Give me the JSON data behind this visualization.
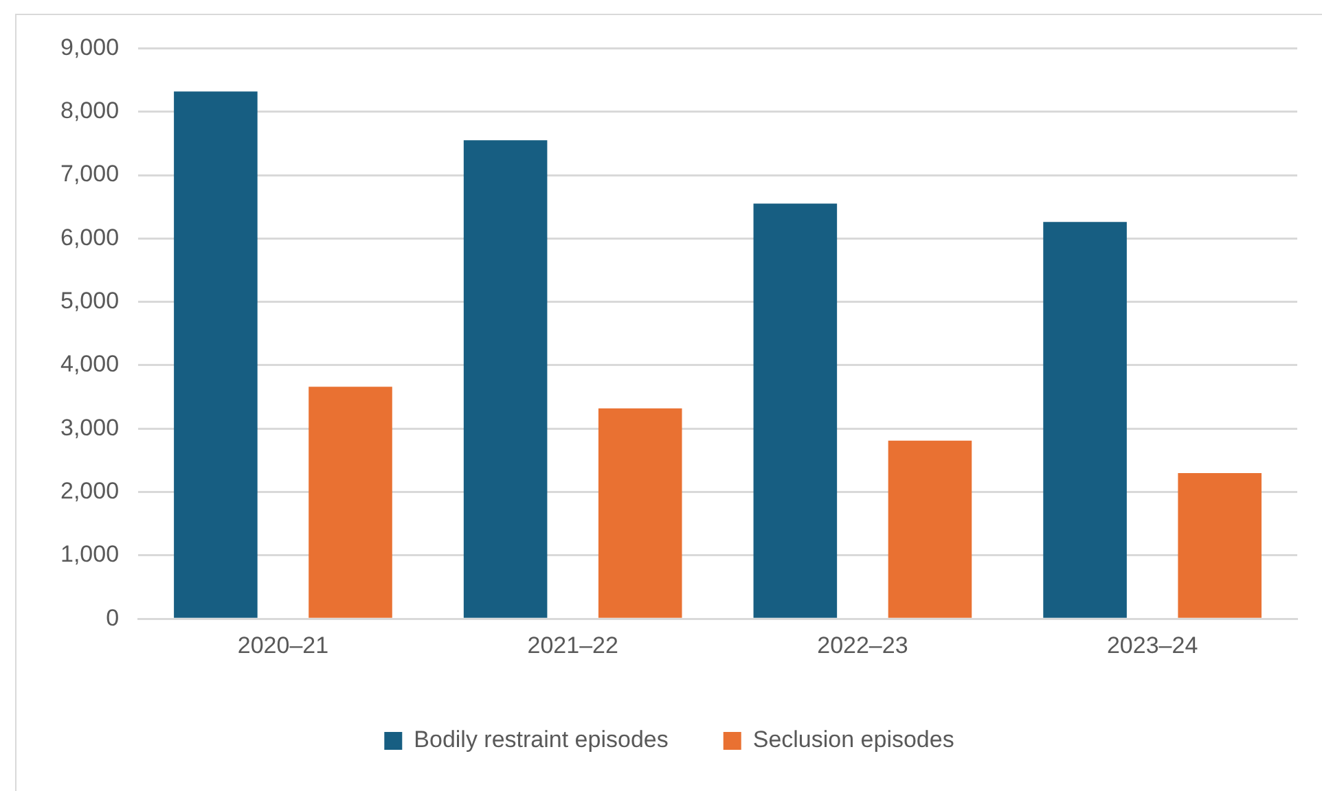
{
  "chart_data": {
    "type": "bar",
    "categories": [
      "2020–21",
      "2021–22",
      "2022–23",
      "2023–24"
    ],
    "series": [
      {
        "name": "Bodily restraint episodes",
        "color": "#175e82",
        "values": [
          8320,
          7550,
          6550,
          6260
        ]
      },
      {
        "name": "Seclusion episodes",
        "color": "#e97132",
        "values": [
          3660,
          3320,
          2810,
          2300
        ]
      }
    ],
    "ylim": [
      0,
      9000
    ],
    "yticks": [
      {
        "value": 0,
        "label": "0"
      },
      {
        "value": 1000,
        "label": "1,000"
      },
      {
        "value": 2000,
        "label": "2,000"
      },
      {
        "value": 3000,
        "label": "3,000"
      },
      {
        "value": 4000,
        "label": "4,000"
      },
      {
        "value": 5000,
        "label": "5,000"
      },
      {
        "value": 6000,
        "label": "6,000"
      },
      {
        "value": 7000,
        "label": "7,000"
      },
      {
        "value": 8000,
        "label": "8,000"
      },
      {
        "value": 9000,
        "label": "9,000"
      }
    ],
    "grid": "y",
    "legend": "bottom"
  }
}
